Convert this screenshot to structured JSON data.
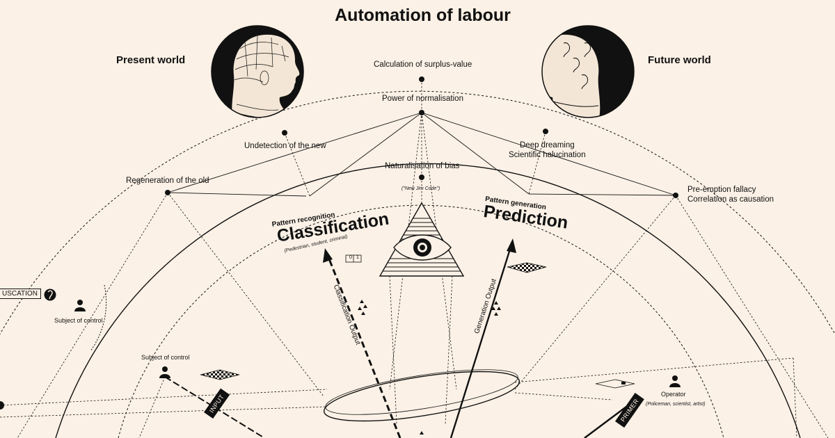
{
  "title": "Automation of labour",
  "worlds": {
    "present": "Present world",
    "future": "Future world"
  },
  "nodes": {
    "surplus": "Calculation of surplus-value",
    "normalisation": "Power of normalisation",
    "undetection": "Undetection of the new",
    "deep_dreaming": "Deep dreaming",
    "halucination": "Scientific halucination",
    "naturalisation": "Naturalisation of bias",
    "jim_crow": "(\"New Jim Code\")",
    "regeneration": "Regeneration of the old",
    "preemption": "Pre-emption fallacy",
    "correlation": "Correlation as causation"
  },
  "classification": {
    "subtitle": "Pattern recognition",
    "title": "Classification",
    "examples": "(Pedestrian, student, criminal)",
    "output": "Classification Output",
    "bits": [
      "0",
      "1"
    ]
  },
  "prediction": {
    "subtitle": "Pattern generation",
    "title": "Prediction",
    "output": "Generation Output"
  },
  "labels": {
    "obfuscation": "USCATION",
    "subject1": "Subject of control",
    "subject2": "Subject of control",
    "operator": "Operator",
    "operator_examples": "(Policeman, scientist, artist)",
    "input": "INPUT",
    "primer": "PRIMER"
  },
  "icons": [
    "phrenology-head-icon",
    "clean-head-ears-icon",
    "all-seeing-eye-icon",
    "person-icon",
    "brain-pin-icon",
    "grid-tile-icon"
  ]
}
